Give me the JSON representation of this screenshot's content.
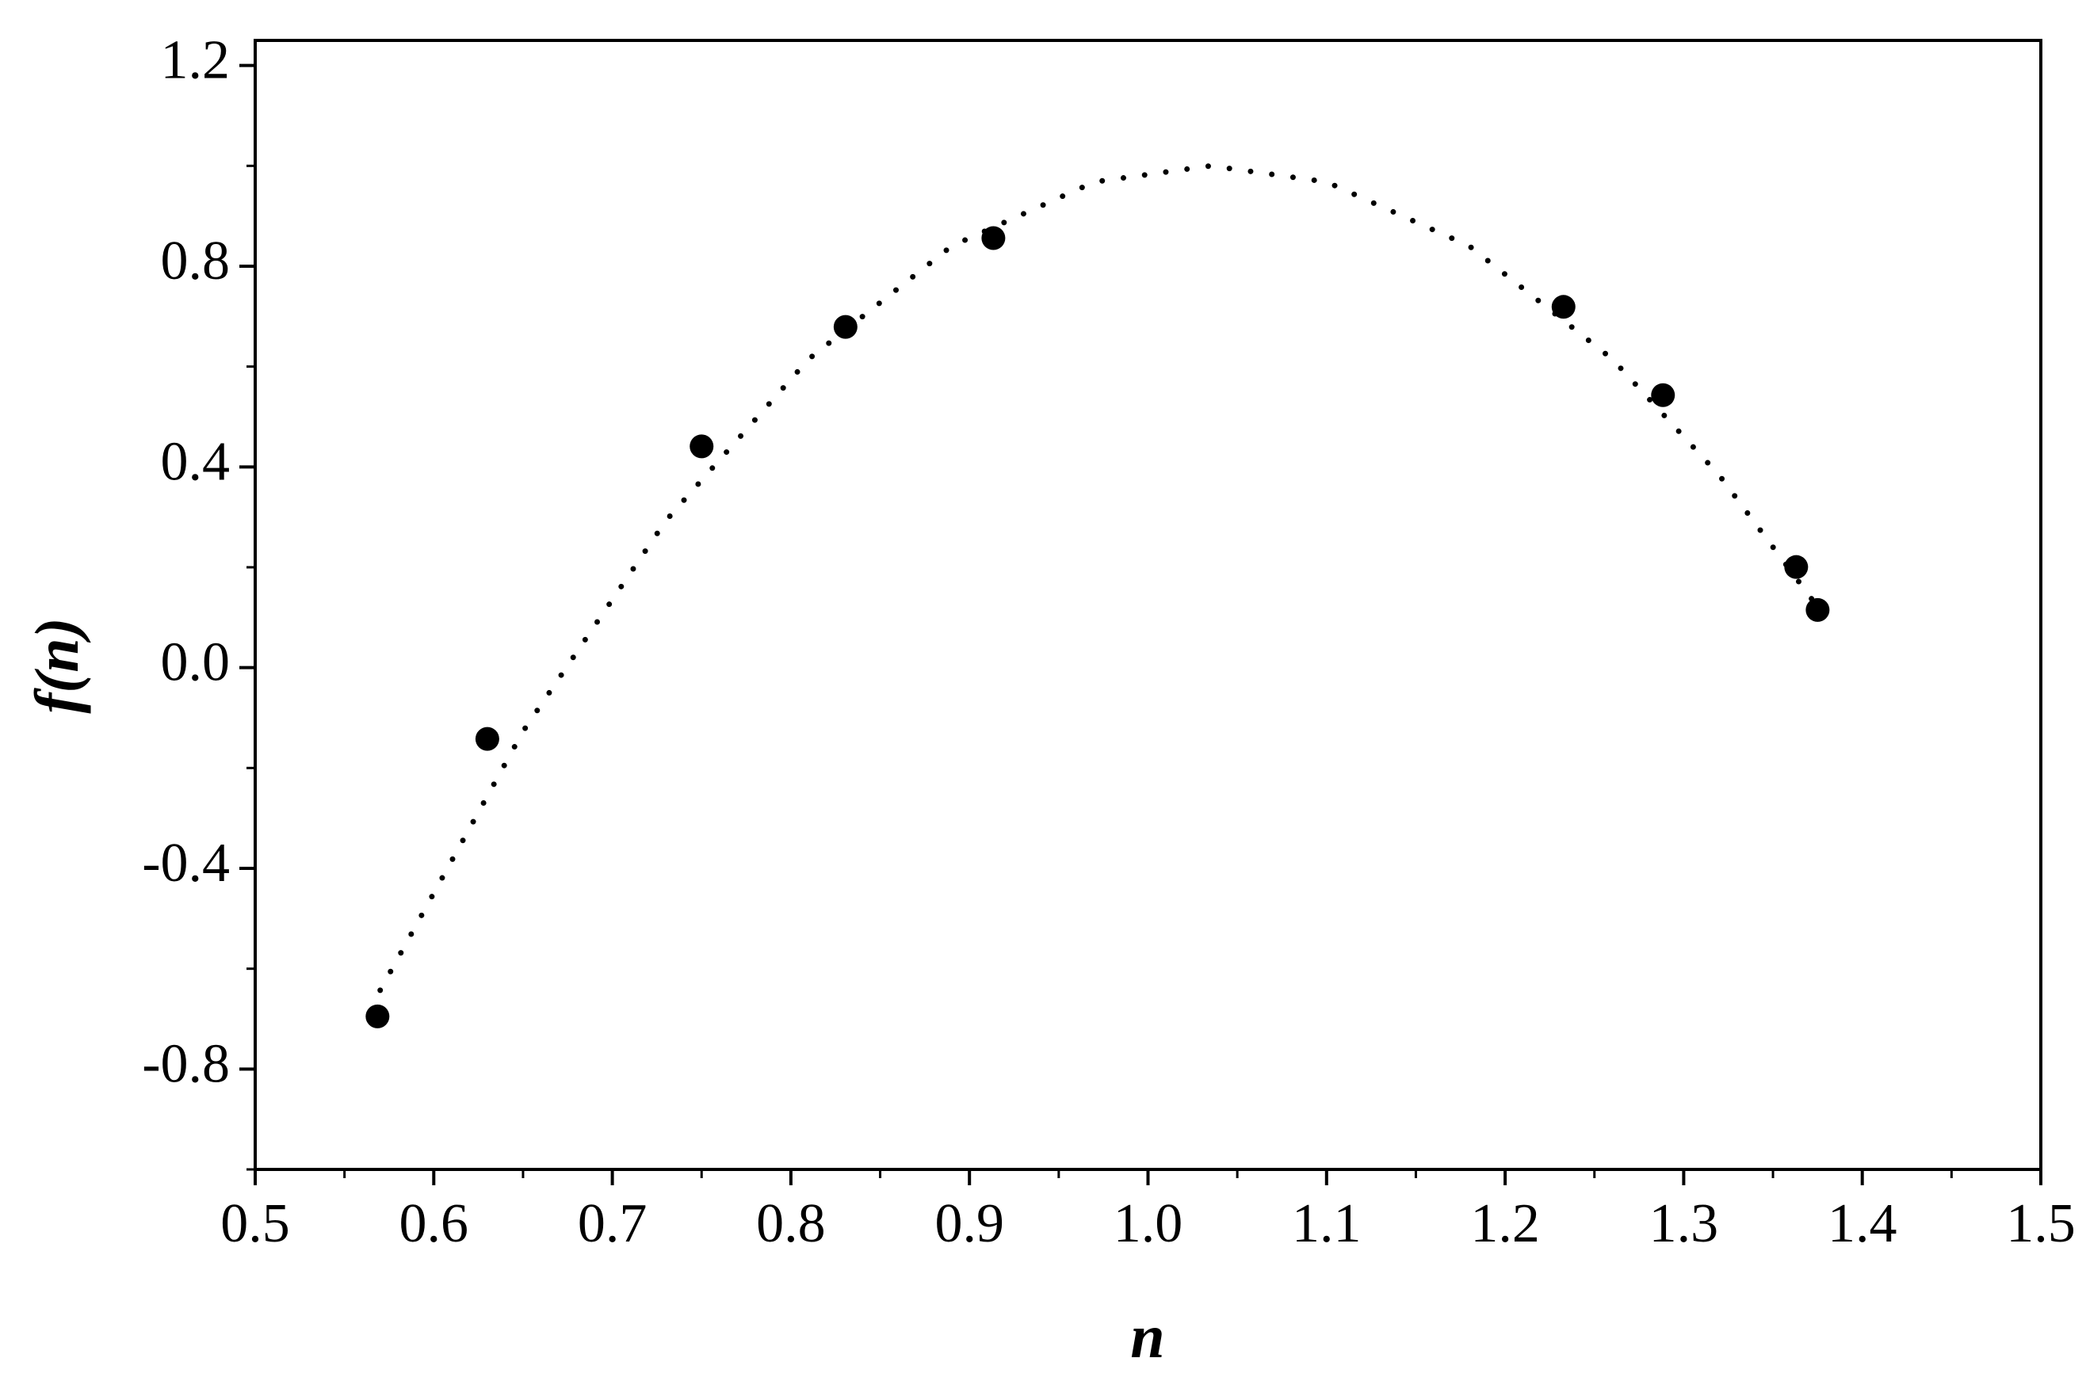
{
  "chart_data": {
    "type": "scatter",
    "x_label": "n",
    "y_label": "f(n)",
    "xlim": [
      0.5,
      1.5
    ],
    "ylim": [
      -1.0,
      1.25
    ],
    "xticks": [
      0.5,
      0.6,
      0.7,
      0.8,
      0.9,
      {
        "value": 1,
        "label": "1.0"
      },
      1.1,
      1.2,
      1.3,
      1.4,
      1.5
    ],
    "yticks": [
      -0.8,
      -0.4,
      {
        "value": 0,
        "label": "0.0"
      },
      0.4,
      0.8,
      1.2
    ],
    "grid": false,
    "series": [
      {
        "style": "markers",
        "color": "#000000",
        "x": [
          0.5685,
          0.63,
          0.75,
          0.8306,
          0.9134,
          1.2327,
          1.2884,
          1.363,
          1.375
        ],
        "values": [
          -0.695,
          -0.142,
          0.441,
          0.679,
          0.856,
          0.719,
          0.543,
          0.2005,
          0.115
        ]
      },
      {
        "style": "dotted",
        "color": "#000000",
        "x": [
          0.57,
          0.65,
          0.73,
          0.81,
          0.89,
          0.97,
          1.035,
          1.1,
          1.18,
          1.26,
          1.32,
          1.375
        ],
        "values": [
          -0.643,
          -0.127,
          0.293,
          0.615,
          0.84,
          0.968,
          1.0,
          0.968,
          0.84,
          0.615,
          0.383,
          0.121
        ]
      }
    ]
  }
}
